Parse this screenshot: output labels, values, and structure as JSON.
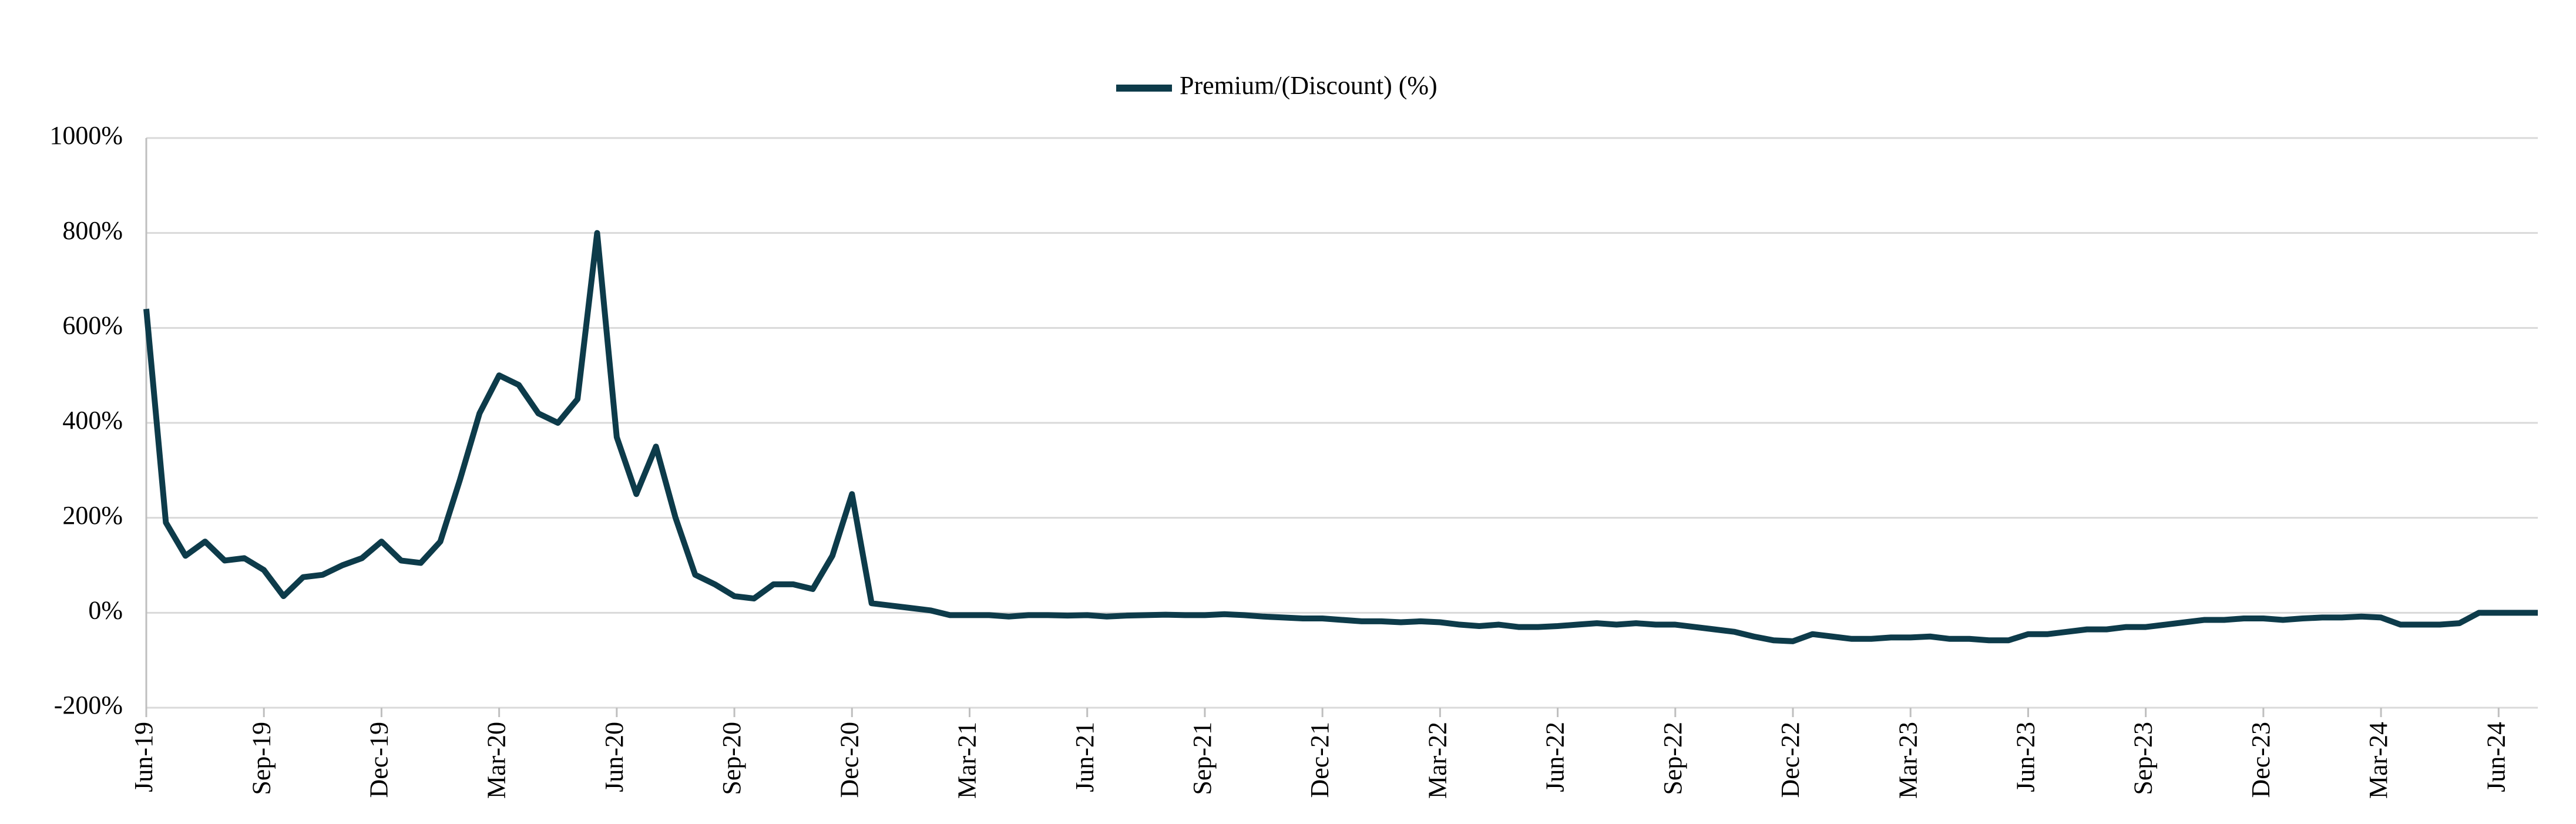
{
  "chart_data": {
    "type": "line",
    "categories": [
      "Jun-19",
      null,
      null,
      null,
      null,
      null,
      "Sep-19",
      null,
      null,
      null,
      null,
      null,
      "Dec-19",
      null,
      null,
      null,
      null,
      null,
      "Mar-20",
      null,
      null,
      null,
      null,
      null,
      "Jun-20",
      null,
      null,
      null,
      null,
      null,
      "Sep-20",
      null,
      null,
      null,
      null,
      null,
      "Dec-20",
      null,
      null,
      null,
      null,
      null,
      "Mar-21",
      null,
      null,
      null,
      null,
      null,
      "Jun-21",
      null,
      null,
      null,
      null,
      null,
      "Sep-21",
      null,
      null,
      null,
      null,
      null,
      "Dec-21",
      null,
      null,
      null,
      null,
      null,
      "Mar-22",
      null,
      null,
      null,
      null,
      null,
      "Jun-22",
      null,
      null,
      null,
      null,
      null,
      "Sep-22",
      null,
      null,
      null,
      null,
      null,
      "Dec-22",
      null,
      null,
      null,
      null,
      null,
      "Mar-23",
      null,
      null,
      null,
      null,
      null,
      "Jun-23",
      null,
      null,
      null,
      null,
      null,
      "Sep-23",
      null,
      null,
      null,
      null,
      null,
      "Dec-23",
      null,
      null,
      null,
      null,
      null,
      "Mar-24",
      null,
      null,
      null,
      null,
      null,
      "Jun-24",
      null,
      null
    ],
    "series": [
      {
        "name": "Premium/(Discount) (%)",
        "color": "#0d3b4a",
        "values": [
          640,
          190,
          120,
          150,
          110,
          115,
          90,
          35,
          75,
          80,
          100,
          115,
          150,
          110,
          105,
          150,
          280,
          420,
          500,
          480,
          420,
          400,
          450,
          800,
          370,
          250,
          350,
          200,
          80,
          60,
          35,
          30,
          60,
          60,
          50,
          120,
          250,
          20,
          15,
          10,
          5,
          -5,
          -5,
          -5,
          -8,
          -5,
          -5,
          -6,
          -5,
          -8,
          -6,
          -5,
          -4,
          -5,
          -5,
          -3,
          -5,
          -8,
          -10,
          -12,
          -12,
          -15,
          -18,
          -18,
          -20,
          -18,
          -20,
          -25,
          -28,
          -25,
          -30,
          -30,
          -28,
          -25,
          -22,
          -25,
          -22,
          -25,
          -25,
          -30,
          -35,
          -40,
          -50,
          -58,
          -60,
          -45,
          -50,
          -55,
          -55,
          -52,
          -52,
          -50,
          -55,
          -55,
          -58,
          -58,
          -45,
          -45,
          -40,
          -35,
          -35,
          -30,
          -30,
          -25,
          -20,
          -15,
          -15,
          -12,
          -12,
          -15,
          -12,
          -10,
          -10,
          -8,
          -10,
          -25,
          -25,
          -25,
          -22,
          0,
          0,
          0,
          0
        ]
      }
    ],
    "ylim": [
      -200,
      1000
    ],
    "yticks": [
      {
        "value": -200,
        "label": "-200%"
      },
      {
        "value": 0,
        "label": "0%"
      },
      {
        "value": 200,
        "label": "200%"
      },
      {
        "value": 400,
        "label": "400%"
      },
      {
        "value": 600,
        "label": "600%"
      },
      {
        "value": 800,
        "label": "800%"
      },
      {
        "value": 1000,
        "label": "1000%"
      }
    ],
    "grid": true,
    "legend": "top"
  }
}
